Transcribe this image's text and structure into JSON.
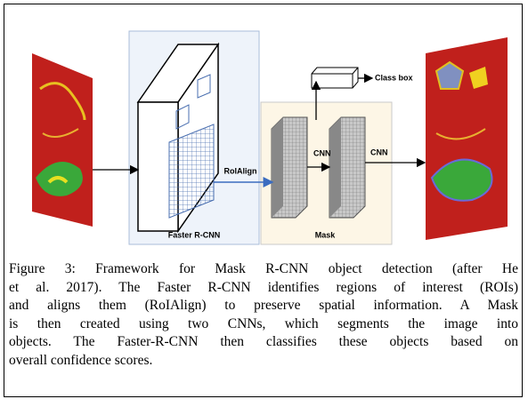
{
  "figure": {
    "labels": {
      "class_box": "Class box",
      "roialign": "RoIAlign",
      "cnn_1": "CNN",
      "cnn_2": "CNN",
      "faster_rcnn": "Faster R-CNN",
      "mask": "Mask"
    },
    "caption": {
      "lines": [
        "Figure 3:  Framework for Mask R-CNN object detection (after He",
        "et al. 2017). The Faster R-CNN identifies regions of interest (ROIs)",
        "and aligns them (RoIAlign) to preserve spatial information. A Mask",
        "is then created using two CNNs, which segments the image into",
        "objects. The Faster-R-CNN then classifies these objects based on",
        "overall confidence scores."
      ]
    }
  }
}
